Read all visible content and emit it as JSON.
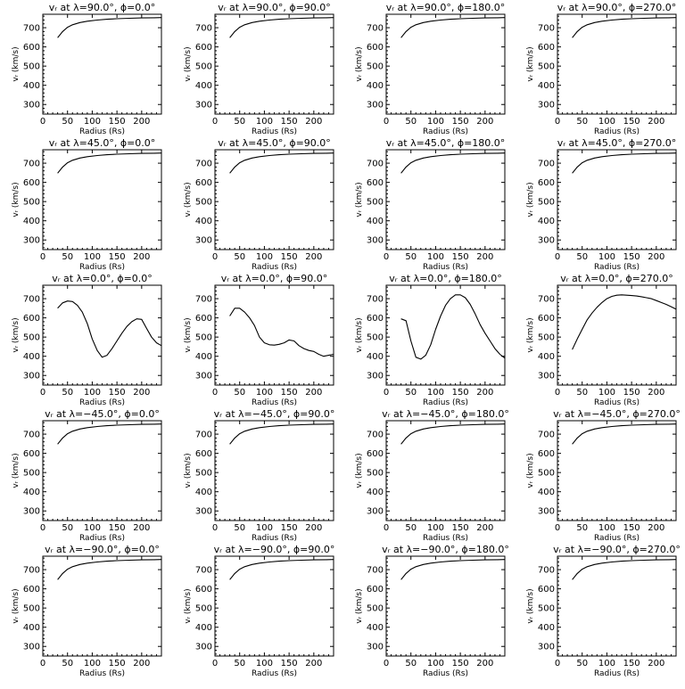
{
  "figure": {
    "x_tick_labels": [
      "0",
      "50",
      "100",
      "150",
      "200"
    ],
    "y_tick_labels": [
      "300",
      "400",
      "500",
      "600",
      "700"
    ]
  },
  "chart_data": [
    {
      "type": "line",
      "title": "vᵣ at λ=90.0°, ϕ=0.0°",
      "xlabel": "Radius (Rs)",
      "ylabel": "vᵣ (km/s)",
      "xlim": [
        0,
        240
      ],
      "ylim": [
        250,
        770
      ],
      "series": [
        {
          "x": [
            30,
            40,
            50,
            60,
            75,
            90,
            110,
            130,
            150,
            175,
            200,
            225,
            240
          ],
          "values": [
            648,
            680,
            702,
            715,
            727,
            734,
            740,
            744,
            747,
            749,
            751,
            752,
            753
          ]
        }
      ]
    },
    {
      "type": "line",
      "title": "vᵣ at λ=90.0°, ϕ=90.0°",
      "xlabel": "Radius (Rs)",
      "ylabel": "vᵣ (km/s)",
      "xlim": [
        0,
        240
      ],
      "ylim": [
        250,
        770
      ],
      "series": [
        {
          "x": [
            30,
            40,
            50,
            60,
            75,
            90,
            110,
            130,
            150,
            175,
            200,
            225,
            240
          ],
          "values": [
            648,
            680,
            702,
            715,
            727,
            734,
            740,
            744,
            747,
            749,
            751,
            752,
            753
          ]
        }
      ]
    },
    {
      "type": "line",
      "title": "vᵣ at λ=90.0°, ϕ=180.0°",
      "xlabel": "Radius (Rs)",
      "ylabel": "vᵣ (km/s)",
      "xlim": [
        0,
        240
      ],
      "ylim": [
        250,
        770
      ],
      "series": [
        {
          "x": [
            30,
            40,
            50,
            60,
            75,
            90,
            110,
            130,
            150,
            175,
            200,
            225,
            240
          ],
          "values": [
            648,
            680,
            702,
            715,
            727,
            734,
            740,
            744,
            747,
            749,
            751,
            752,
            753
          ]
        }
      ]
    },
    {
      "type": "line",
      "title": "vᵣ at λ=90.0°, ϕ=270.0°",
      "xlabel": "Radius (Rs)",
      "ylabel": "vᵣ (km/s)",
      "xlim": [
        0,
        240
      ],
      "ylim": [
        250,
        770
      ],
      "series": [
        {
          "x": [
            30,
            40,
            50,
            60,
            75,
            90,
            110,
            130,
            150,
            175,
            200,
            225,
            240
          ],
          "values": [
            648,
            680,
            702,
            715,
            727,
            734,
            740,
            744,
            747,
            749,
            751,
            752,
            753
          ]
        }
      ]
    },
    {
      "type": "line",
      "title": "vᵣ at λ=45.0°, ϕ=0.0°",
      "xlabel": "Radius (Rs)",
      "ylabel": "vᵣ (km/s)",
      "xlim": [
        0,
        240
      ],
      "ylim": [
        250,
        770
      ],
      "series": [
        {
          "x": [
            30,
            40,
            50,
            60,
            75,
            90,
            110,
            130,
            150,
            175,
            200,
            225,
            240
          ],
          "values": [
            648,
            680,
            702,
            715,
            727,
            734,
            740,
            744,
            747,
            749,
            751,
            752,
            753
          ]
        }
      ]
    },
    {
      "type": "line",
      "title": "vᵣ at λ=45.0°, ϕ=90.0°",
      "xlabel": "Radius (Rs)",
      "ylabel": "vᵣ (km/s)",
      "xlim": [
        0,
        240
      ],
      "ylim": [
        250,
        770
      ],
      "series": [
        {
          "x": [
            30,
            40,
            50,
            60,
            75,
            90,
            110,
            130,
            150,
            175,
            200,
            225,
            240
          ],
          "values": [
            648,
            680,
            702,
            715,
            727,
            734,
            740,
            744,
            747,
            749,
            751,
            752,
            753
          ]
        }
      ]
    },
    {
      "type": "line",
      "title": "vᵣ at λ=45.0°, ϕ=180.0°",
      "xlabel": "Radius (Rs)",
      "ylabel": "vᵣ (km/s)",
      "xlim": [
        0,
        240
      ],
      "ylim": [
        250,
        770
      ],
      "series": [
        {
          "x": [
            30,
            40,
            50,
            60,
            75,
            90,
            110,
            130,
            150,
            175,
            200,
            225,
            240
          ],
          "values": [
            648,
            680,
            702,
            715,
            727,
            734,
            740,
            744,
            747,
            749,
            751,
            752,
            753
          ]
        }
      ]
    },
    {
      "type": "line",
      "title": "vᵣ at λ=45.0°, ϕ=270.0°",
      "xlabel": "Radius (Rs)",
      "ylabel": "vᵣ (km/s)",
      "xlim": [
        0,
        240
      ],
      "ylim": [
        250,
        770
      ],
      "series": [
        {
          "x": [
            30,
            40,
            50,
            60,
            75,
            90,
            110,
            130,
            150,
            175,
            200,
            225,
            240
          ],
          "values": [
            648,
            680,
            702,
            715,
            727,
            734,
            740,
            744,
            747,
            749,
            751,
            752,
            753
          ]
        }
      ]
    },
    {
      "type": "line",
      "title": "vᵣ at λ=0.0°, ϕ=0.0°",
      "xlabel": "Radius (Rs)",
      "ylabel": "vᵣ (km/s)",
      "xlim": [
        0,
        240
      ],
      "ylim": [
        250,
        770
      ],
      "series": [
        {
          "x": [
            30,
            40,
            50,
            60,
            70,
            80,
            90,
            100,
            110,
            120,
            130,
            140,
            150,
            160,
            170,
            180,
            190,
            200,
            210,
            220,
            230,
            240
          ],
          "values": [
            650,
            678,
            688,
            685,
            665,
            630,
            570,
            490,
            430,
            395,
            405,
            440,
            480,
            520,
            555,
            580,
            595,
            592,
            545,
            500,
            470,
            455
          ]
        }
      ]
    },
    {
      "type": "line",
      "title": "vᵣ at λ=0.0°, ϕ=90.0°",
      "xlabel": "Radius (Rs)",
      "ylabel": "vᵣ (km/s)",
      "xlim": [
        0,
        240
      ],
      "ylim": [
        250,
        770
      ],
      "series": [
        {
          "x": [
            30,
            40,
            50,
            60,
            70,
            80,
            90,
            100,
            110,
            120,
            130,
            140,
            150,
            160,
            170,
            180,
            190,
            200,
            210,
            220,
            230,
            240
          ],
          "values": [
            610,
            650,
            650,
            630,
            600,
            560,
            500,
            470,
            460,
            458,
            462,
            470,
            485,
            480,
            455,
            440,
            430,
            425,
            410,
            400,
            405,
            410
          ]
        }
      ]
    },
    {
      "type": "line",
      "title": "vᵣ at λ=0.0°, ϕ=180.0°",
      "xlabel": "Radius (Rs)",
      "ylabel": "vᵣ (km/s)",
      "xlim": [
        0,
        240
      ],
      "ylim": [
        250,
        770
      ],
      "series": [
        {
          "x": [
            30,
            40,
            50,
            60,
            70,
            80,
            90,
            100,
            110,
            120,
            130,
            140,
            150,
            160,
            170,
            180,
            190,
            200,
            210,
            220,
            230,
            240
          ],
          "values": [
            595,
            585,
            480,
            395,
            385,
            405,
            460,
            540,
            610,
            665,
            700,
            720,
            720,
            705,
            670,
            620,
            565,
            520,
            480,
            440,
            410,
            390
          ]
        }
      ]
    },
    {
      "type": "line",
      "title": "vᵣ at λ=0.0°, ϕ=270.0°",
      "xlabel": "Radius (Rs)",
      "ylabel": "vᵣ (km/s)",
      "xlim": [
        0,
        240
      ],
      "ylim": [
        250,
        770
      ],
      "series": [
        {
          "x": [
            30,
            40,
            50,
            60,
            70,
            80,
            90,
            100,
            110,
            120,
            130,
            140,
            150,
            160,
            170,
            180,
            190,
            200,
            210,
            220,
            230,
            240
          ],
          "values": [
            435,
            490,
            540,
            590,
            625,
            655,
            680,
            700,
            712,
            718,
            720,
            718,
            716,
            714,
            710,
            705,
            700,
            690,
            680,
            670,
            658,
            645
          ]
        }
      ]
    },
    {
      "type": "line",
      "title": "vᵣ at λ=−45.0°, ϕ=0.0°",
      "xlabel": "Radius (Rs)",
      "ylabel": "vᵣ (km/s)",
      "xlim": [
        0,
        240
      ],
      "ylim": [
        250,
        770
      ],
      "series": [
        {
          "x": [
            30,
            40,
            50,
            60,
            75,
            90,
            110,
            130,
            150,
            175,
            200,
            225,
            240
          ],
          "values": [
            648,
            680,
            702,
            715,
            727,
            734,
            740,
            744,
            747,
            749,
            751,
            752,
            753
          ]
        }
      ]
    },
    {
      "type": "line",
      "title": "vᵣ at λ=−45.0°, ϕ=90.0°",
      "xlabel": "Radius (Rs)",
      "ylabel": "vᵣ (km/s)",
      "xlim": [
        0,
        240
      ],
      "ylim": [
        250,
        770
      ],
      "series": [
        {
          "x": [
            30,
            40,
            50,
            60,
            75,
            90,
            110,
            130,
            150,
            175,
            200,
            225,
            240
          ],
          "values": [
            648,
            680,
            702,
            715,
            727,
            734,
            740,
            744,
            747,
            749,
            751,
            752,
            753
          ]
        }
      ]
    },
    {
      "type": "line",
      "title": "vᵣ at λ=−45.0°, ϕ=180.0°",
      "xlabel": "Radius (Rs)",
      "ylabel": "vᵣ (km/s)",
      "xlim": [
        0,
        240
      ],
      "ylim": [
        250,
        770
      ],
      "series": [
        {
          "x": [
            30,
            40,
            50,
            60,
            75,
            90,
            110,
            130,
            150,
            175,
            200,
            225,
            240
          ],
          "values": [
            648,
            680,
            702,
            715,
            727,
            734,
            740,
            744,
            747,
            749,
            751,
            752,
            753
          ]
        }
      ]
    },
    {
      "type": "line",
      "title": "vᵣ at λ=−45.0°, ϕ=270.0°",
      "xlabel": "Radius (Rs)",
      "ylabel": "vᵣ (km/s)",
      "xlim": [
        0,
        240
      ],
      "ylim": [
        250,
        770
      ],
      "series": [
        {
          "x": [
            30,
            40,
            50,
            60,
            75,
            90,
            110,
            130,
            150,
            175,
            200,
            225,
            240
          ],
          "values": [
            648,
            680,
            702,
            715,
            727,
            734,
            740,
            744,
            747,
            749,
            751,
            752,
            753
          ]
        }
      ]
    },
    {
      "type": "line",
      "title": "vᵣ at λ=−90.0°, ϕ=0.0°",
      "xlabel": "Radius (Rs)",
      "ylabel": "vᵣ (km/s)",
      "xlim": [
        0,
        240
      ],
      "ylim": [
        250,
        770
      ],
      "series": [
        {
          "x": [
            30,
            40,
            50,
            60,
            75,
            90,
            110,
            130,
            150,
            175,
            200,
            225,
            240
          ],
          "values": [
            648,
            680,
            702,
            715,
            727,
            734,
            740,
            744,
            747,
            749,
            751,
            752,
            753
          ]
        }
      ]
    },
    {
      "type": "line",
      "title": "vᵣ at λ=−90.0°, ϕ=90.0°",
      "xlabel": "Radius (Rs)",
      "ylabel": "vᵣ (km/s)",
      "xlim": [
        0,
        240
      ],
      "ylim": [
        250,
        770
      ],
      "series": [
        {
          "x": [
            30,
            40,
            50,
            60,
            75,
            90,
            110,
            130,
            150,
            175,
            200,
            225,
            240
          ],
          "values": [
            648,
            680,
            702,
            715,
            727,
            734,
            740,
            744,
            747,
            749,
            751,
            752,
            753
          ]
        }
      ]
    },
    {
      "type": "line",
      "title": "vᵣ at λ=−90.0°, ϕ=180.0°",
      "xlabel": "Radius (Rs)",
      "ylabel": "vᵣ (km/s)",
      "xlim": [
        0,
        240
      ],
      "ylim": [
        250,
        770
      ],
      "series": [
        {
          "x": [
            30,
            40,
            50,
            60,
            75,
            90,
            110,
            130,
            150,
            175,
            200,
            225,
            240
          ],
          "values": [
            648,
            680,
            702,
            715,
            727,
            734,
            740,
            744,
            747,
            749,
            751,
            752,
            753
          ]
        }
      ]
    },
    {
      "type": "line",
      "title": "vᵣ at λ=−90.0°, ϕ=270.0°",
      "xlabel": "Radius (Rs)",
      "ylabel": "vᵣ (km/s)",
      "xlim": [
        0,
        240
      ],
      "ylim": [
        250,
        770
      ],
      "series": [
        {
          "x": [
            30,
            40,
            50,
            60,
            75,
            90,
            110,
            130,
            150,
            175,
            200,
            225,
            240
          ],
          "values": [
            648,
            680,
            702,
            715,
            727,
            734,
            740,
            744,
            747,
            749,
            751,
            752,
            753
          ]
        }
      ]
    }
  ]
}
